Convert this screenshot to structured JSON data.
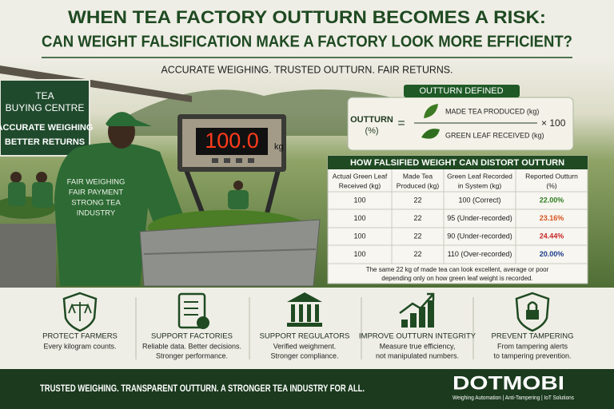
{
  "header": {
    "title": "WHEN TEA FACTORY OUTTURN BECOMES A RISK:",
    "subtitle": "CAN WEIGHT FALSIFICATION MAKE A FACTORY LOOK MORE EFFICIENT?",
    "tagline": "ACCURATE WEIGHING. TRUSTED OUTTURN. FAIR RETURNS."
  },
  "photo": {
    "sign": [
      "TEA",
      "BUYING CENTRE",
      "ACCURATE WEIGHING",
      "BETTER RETURNS"
    ],
    "scale_display": "100.0",
    "scale_unit": "kg",
    "shirt": [
      "FAIR WEIGHING",
      "FAIR PAYMENT",
      "STRONG TEA",
      "INDUSTRY"
    ]
  },
  "formula": {
    "label": "OUTTURN DEFINED",
    "term": "OUTTURN",
    "unit": "(%)",
    "equals": "=",
    "numerator": "MADE TEA PRODUCED (kg)",
    "denominator": "GREEN LEAF RECEIVED (kg)",
    "multiplier": "× 100"
  },
  "table": {
    "title": "HOW FALSIFIED WEIGHT CAN DISTORT OUTTURN",
    "columns": [
      [
        "Actual Green Leaf",
        "Received (kg)"
      ],
      [
        "Made Tea",
        "Produced (kg)"
      ],
      [
        "Green Leaf Recorded",
        "in System (kg)"
      ],
      [
        "Reported Outturn",
        "(%)"
      ]
    ],
    "rows": [
      [
        "100",
        "22",
        "100 (Correct)",
        "22.00%"
      ],
      [
        "100",
        "22",
        "95 (Under-recorded)",
        "23.16%"
      ],
      [
        "100",
        "22",
        "90 (Under-recorded)",
        "24.44%"
      ],
      [
        "100",
        "22",
        "110 (Over-recorded)",
        "20.00%"
      ]
    ],
    "note": [
      "The same 22 kg of made tea can look excellent, average or poor",
      "depending only on how green leaf weight is recorded."
    ]
  },
  "benefits": [
    {
      "title": "PROTECT FARMERS",
      "text": [
        "Every kilogram counts."
      ]
    },
    {
      "title": "SUPPORT FACTORIES",
      "text": [
        "Reliable data. Better decisions.",
        "Stronger performance."
      ]
    },
    {
      "title": "SUPPORT REGULATORS",
      "text": [
        "Verified weighment.",
        "Stronger compliance."
      ]
    },
    {
      "title": "IMPROVE OUTTURN INTEGRITY",
      "text": [
        "Measure true efficiency,",
        "not manipulated numbers."
      ]
    },
    {
      "title": "PREVENT TAMPERING",
      "text": [
        "From tampering alerts",
        "to tampering prevention."
      ]
    }
  ],
  "footer": {
    "slogan": "TRUSTED WEIGHING. TRANSPARENT OUTTURN. A STRONGER TEA INDUSTRY FOR ALL.",
    "brand": "DOTMOBI",
    "services": "Weighing Automation | Anti-Tampering | IoT Solutions"
  }
}
